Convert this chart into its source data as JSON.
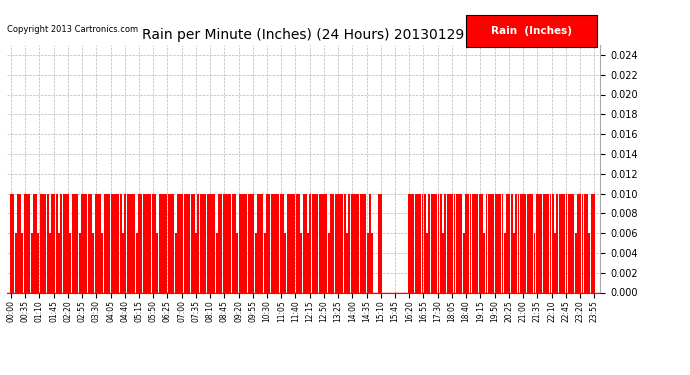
{
  "title": "Rain per Minute (Inches) (24 Hours) 20130129",
  "copyright": "Copyright 2013 Cartronics.com",
  "legend_label": "Rain  (Inches)",
  "bar_color": "#ff0000",
  "legend_bg": "#ff0000",
  "legend_text_color": "#ffffff",
  "background_color": "#ffffff",
  "grid_color": "#999999",
  "ylim": [
    0,
    0.025
  ],
  "yticks": [
    0.0,
    0.002,
    0.004,
    0.006,
    0.008,
    0.01,
    0.012,
    0.014,
    0.016,
    0.018,
    0.02,
    0.022,
    0.024
  ],
  "xtick_labels": [
    "00:00",
    "00:35",
    "01:10",
    "01:45",
    "02:20",
    "02:55",
    "03:30",
    "04:05",
    "04:40",
    "05:15",
    "05:50",
    "06:25",
    "07:00",
    "07:35",
    "08:10",
    "08:45",
    "09:20",
    "09:55",
    "10:30",
    "11:05",
    "11:40",
    "12:15",
    "12:50",
    "13:25",
    "14:00",
    "14:35",
    "15:10",
    "15:45",
    "16:20",
    "16:55",
    "17:30",
    "18:05",
    "18:40",
    "19:15",
    "19:50",
    "20:25",
    "21:00",
    "21:35",
    "22:10",
    "22:45",
    "23:20",
    "23:55"
  ],
  "values": [
    0.01,
    0.01,
    0.006,
    0.01,
    0.01,
    0.006,
    0.01,
    0.01,
    0.01,
    0.006,
    0.01,
    0.01,
    0.006,
    0.01,
    0.01,
    0.01,
    0.01,
    0.006,
    0.01,
    0.01,
    0.01,
    0.006,
    0.01,
    0.01,
    0.01,
    0.01,
    0.006,
    0.01,
    0.01,
    0.01,
    0.006,
    0.01,
    0.01,
    0.01,
    0.01,
    0.01,
    0.006,
    0.01,
    0.01,
    0.01,
    0.006,
    0.01,
    0.01,
    0.01,
    0.01,
    0.01,
    0.01,
    0.01,
    0.01,
    0.006,
    0.01,
    0.01,
    0.01,
    0.01,
    0.01,
    0.006,
    0.01,
    0.01,
    0.01,
    0.01,
    0.01,
    0.01,
    0.01,
    0.01,
    0.006,
    0.01,
    0.01,
    0.01,
    0.01,
    0.01,
    0.01,
    0.01,
    0.006,
    0.01,
    0.01,
    0.01,
    0.01,
    0.01,
    0.01,
    0.01,
    0.01,
    0.006,
    0.01,
    0.01,
    0.01,
    0.01,
    0.01,
    0.01,
    0.01,
    0.01,
    0.006,
    0.01,
    0.01,
    0.01,
    0.01,
    0.01,
    0.01,
    0.01,
    0.01,
    0.006,
    0.01,
    0.01,
    0.01,
    0.01,
    0.01,
    0.01,
    0.01,
    0.006,
    0.01,
    0.01,
    0.01,
    0.006,
    0.01,
    0.01,
    0.01,
    0.01,
    0.01,
    0.01,
    0.01,
    0.01,
    0.006,
    0.01,
    0.01,
    0.01,
    0.01,
    0.01,
    0.01,
    0.006,
    0.01,
    0.01,
    0.006,
    0.01,
    0.01,
    0.01,
    0.01,
    0.01,
    0.01,
    0.01,
    0.01,
    0.006,
    0.01,
    0.01,
    0.01,
    0.01,
    0.01,
    0.01,
    0.01,
    0.006,
    0.01,
    0.01,
    0.01,
    0.01,
    0.01,
    0.01,
    0.01,
    0.01,
    0.006,
    0.01,
    0.006,
    0.0,
    0.0,
    0.01,
    0.01,
    0.0,
    0.0,
    0.0,
    0.0,
    0.0,
    0.0,
    0.0,
    0.0,
    0.0,
    0.0,
    0.0,
    0.01,
    0.01,
    0.01,
    0.01,
    0.01,
    0.01,
    0.01,
    0.01,
    0.006,
    0.01,
    0.01,
    0.01,
    0.01,
    0.01,
    0.01,
    0.006,
    0.01,
    0.01,
    0.01,
    0.01,
    0.01,
    0.01,
    0.01,
    0.01,
    0.006,
    0.01,
    0.01,
    0.01,
    0.01,
    0.01,
    0.01,
    0.01,
    0.01,
    0.006,
    0.01,
    0.01,
    0.01,
    0.01,
    0.01,
    0.01,
    0.01,
    0.01,
    0.006,
    0.01,
    0.01,
    0.01,
    0.006,
    0.01,
    0.01,
    0.01,
    0.01,
    0.01,
    0.01,
    0.01,
    0.01,
    0.006,
    0.01,
    0.01,
    0.01,
    0.01,
    0.01,
    0.01,
    0.01,
    0.01,
    0.006,
    0.01,
    0.01,
    0.01,
    0.01,
    0.01,
    0.01,
    0.01,
    0.01,
    0.006,
    0.01,
    0.01,
    0.01,
    0.01,
    0.01,
    0.006,
    0.01,
    0.01
  ],
  "xtick_positions_minutes": [
    0,
    35,
    70,
    105,
    140,
    175,
    210,
    245,
    280,
    315,
    350,
    385,
    420,
    455,
    490,
    525,
    560,
    595,
    630,
    665,
    700,
    735,
    770,
    805,
    840,
    875,
    910,
    945,
    980,
    1015,
    1050,
    1085,
    1120,
    1155,
    1190,
    1225,
    1260,
    1295,
    1330,
    1365,
    1400,
    1435
  ]
}
